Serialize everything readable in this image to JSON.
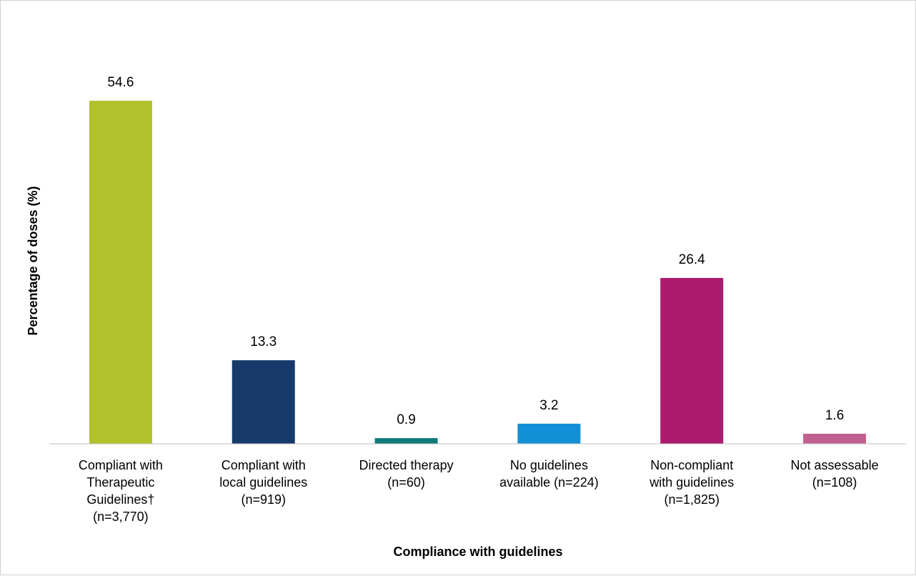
{
  "chart_data": {
    "type": "bar",
    "title": "",
    "xlabel": "Compliance with guidelines",
    "ylabel": "Percentage of doses  (%)",
    "ylim": [
      0,
      60
    ],
    "grid": false,
    "legend": "none",
    "categories": [
      [
        "Compliant with",
        "Therapeutic",
        "Guidelines†",
        "(n=3,770)"
      ],
      [
        "Compliant with",
        "local guidelines",
        "(n=919)"
      ],
      [
        "Directed therapy",
        "(n=60)"
      ],
      [
        "No guidelines",
        "available (n=224)"
      ],
      [
        "Non-compliant",
        "with guidelines",
        "(n=1,825)"
      ],
      [
        "Not assessable",
        "(n=108)"
      ]
    ],
    "values": [
      54.6,
      13.3,
      0.9,
      3.2,
      26.4,
      1.6
    ],
    "value_labels": [
      "54.6",
      "13.3",
      "0.9",
      "3.2",
      "26.4",
      "1.6"
    ],
    "colors": [
      "#b0c12b",
      "#183a6b",
      "#0d7a78",
      "#1190d8",
      "#ab1a6d",
      "#c0608f"
    ]
  }
}
